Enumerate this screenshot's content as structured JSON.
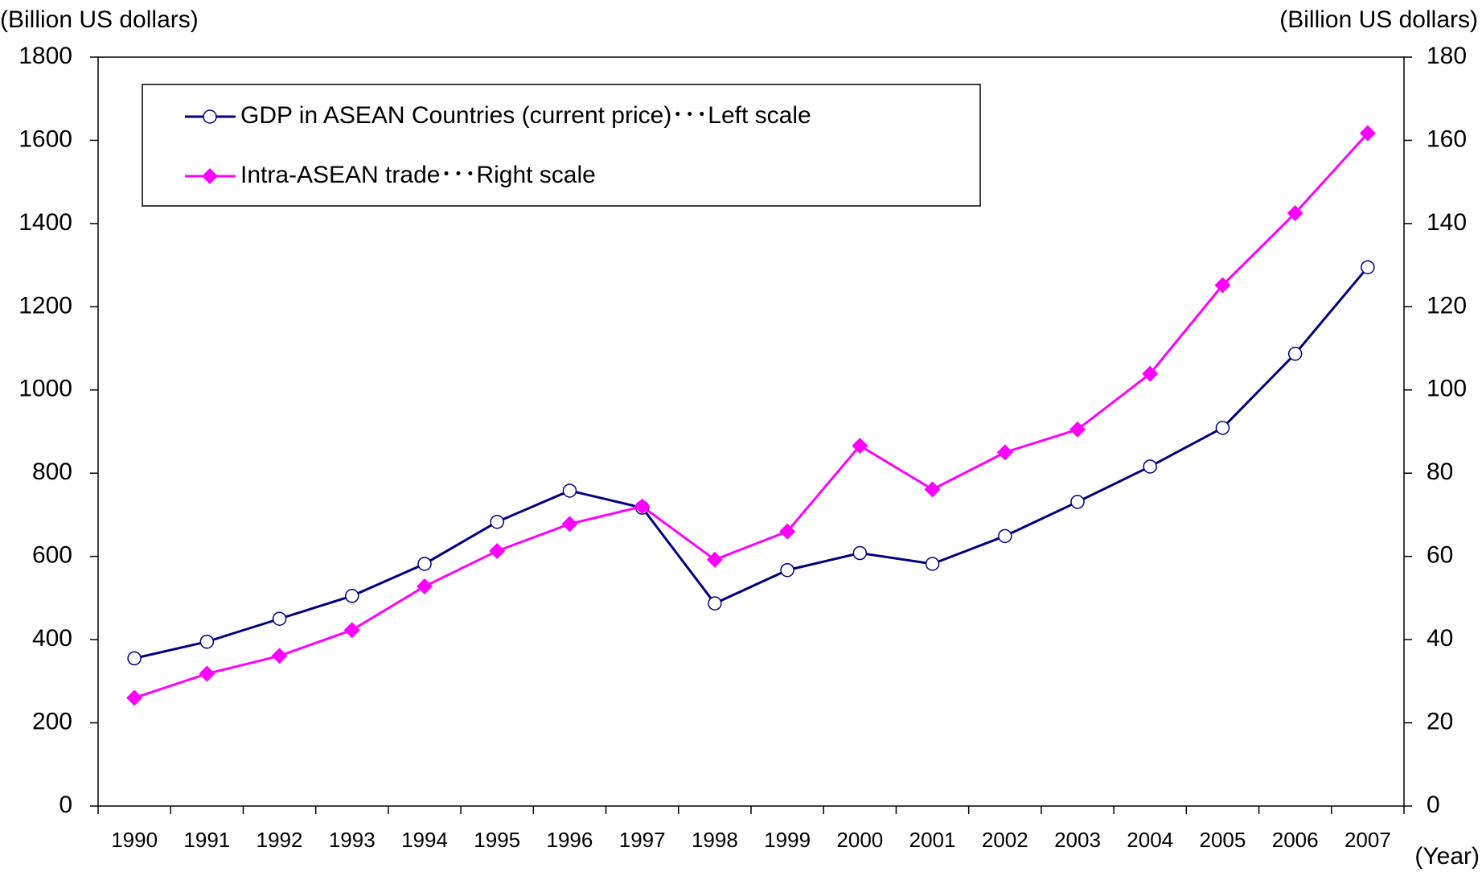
{
  "chart_data": {
    "type": "line",
    "y_label": "(Billion US dollars)",
    "y2_label": "(Billion US dollars)",
    "x_label": "(Year)",
    "categories": [
      "1990",
      "1991",
      "1992",
      "1993",
      "1994",
      "1995",
      "1996",
      "1997",
      "1998",
      "1999",
      "2000",
      "2001",
      "2002",
      "2003",
      "2004",
      "2005",
      "2006",
      "2007"
    ],
    "series": [
      {
        "name": "GDP in ASEAN Countries (current price)･･･Left scale",
        "color": "#000080",
        "marker": "circle",
        "axis": "y",
        "values": [
          355,
          395,
          450,
          505,
          582,
          683,
          758,
          717,
          487,
          567,
          608,
          582,
          649,
          731,
          816,
          909,
          1087,
          1295
        ]
      },
      {
        "name": "Intra-ASEAN trade･･･Right scale",
        "color": "#ff00ff",
        "marker": "diamond",
        "axis": "y2",
        "values": [
          26.0,
          31.8,
          36.1,
          42.3,
          52.8,
          61.3,
          67.8,
          72.0,
          59.2,
          66.0,
          86.6,
          76.1,
          85.0,
          90.5,
          103.9,
          125.2,
          142.5,
          161.7
        ]
      }
    ],
    "ylim": [
      0,
      1800
    ],
    "yticks": [
      0,
      200,
      400,
      600,
      800,
      1000,
      1200,
      1400,
      1600,
      1800
    ],
    "y2lim": [
      0,
      180
    ],
    "y2ticks": [
      0,
      20,
      40,
      60,
      80,
      100,
      120,
      140,
      160,
      180
    ],
    "grid": false
  }
}
